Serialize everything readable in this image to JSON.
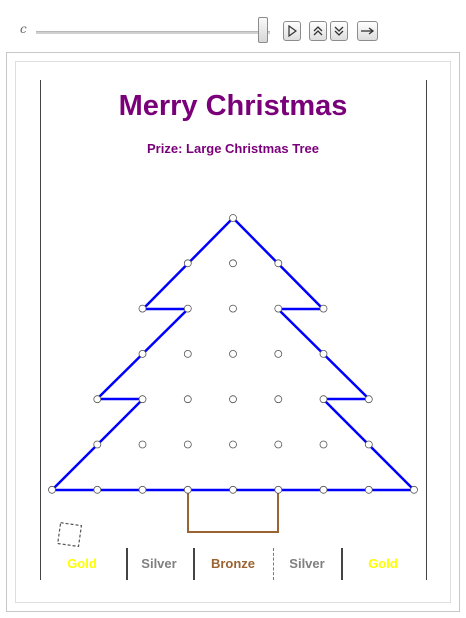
{
  "controls": {
    "variable": "c",
    "slider_fraction": 0.97
  },
  "content": {
    "title": "Merry Christmas",
    "prize": "Prize: Large Christmas Tree"
  },
  "medals": [
    {
      "label": "Gold",
      "color": "#ffff00"
    },
    {
      "label": "Silver",
      "color": "#808080"
    },
    {
      "label": "Bronze",
      "color": "#9a6432"
    },
    {
      "label": "Silver",
      "color": "#808080"
    },
    {
      "label": "Gold",
      "color": "#ffff00"
    }
  ],
  "colors": {
    "title": "#7a007a",
    "tree_outline": "#0000ff",
    "trunk": "#9a6432"
  },
  "icons": [
    "play-icon",
    "speed-up-icon",
    "speed-down-icon",
    "direction-icon",
    "rotate-square-icon"
  ]
}
